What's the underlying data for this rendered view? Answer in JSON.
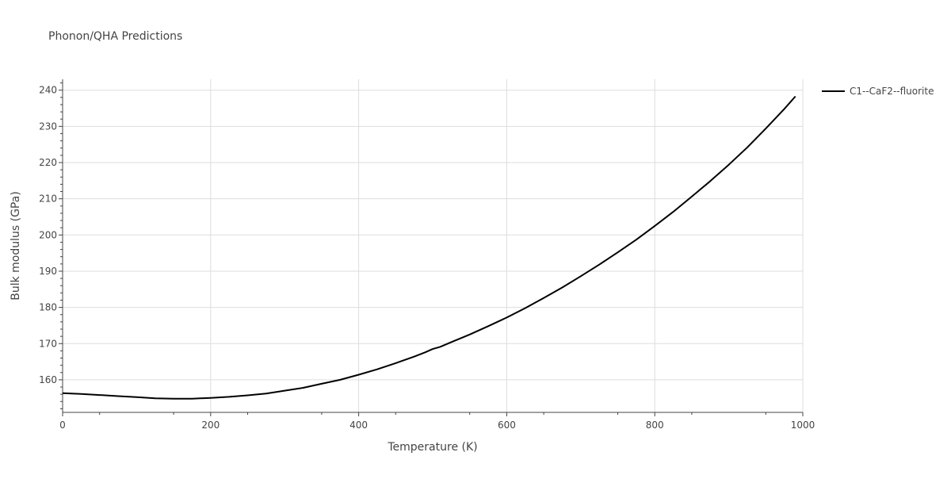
{
  "chart_data": {
    "type": "line",
    "title": "Phonon/QHA Predictions",
    "xlabel": "Temperature (K)",
    "ylabel": "Bulk modulus (GPa)",
    "xlim": [
      0,
      1000
    ],
    "ylim": [
      151,
      243
    ],
    "x_ticks": [
      0,
      200,
      400,
      600,
      800,
      1000
    ],
    "y_ticks": [
      160,
      170,
      180,
      190,
      200,
      210,
      220,
      230,
      240
    ],
    "grid": true,
    "legend_position": "top-right",
    "series": [
      {
        "name": "C1--CaF2--fluorite",
        "color": "#000000",
        "x": [
          0,
          25,
          50,
          75,
          100,
          125,
          150,
          175,
          200,
          225,
          250,
          275,
          300,
          325,
          350,
          375,
          400,
          425,
          450,
          475,
          490,
          500,
          510,
          525,
          550,
          575,
          600,
          625,
          650,
          675,
          700,
          725,
          750,
          775,
          800,
          825,
          850,
          875,
          900,
          925,
          950,
          975,
          990
        ],
        "y": [
          156.3,
          156.1,
          155.8,
          155.5,
          155.2,
          154.9,
          154.8,
          154.8,
          155.0,
          155.3,
          155.7,
          156.2,
          157.0,
          157.8,
          158.9,
          160.0,
          161.4,
          162.9,
          164.6,
          166.4,
          167.6,
          168.5,
          169.1,
          170.4,
          172.5,
          174.8,
          177.2,
          179.8,
          182.6,
          185.5,
          188.6,
          191.8,
          195.2,
          198.7,
          202.5,
          206.4,
          210.6,
          214.9,
          219.4,
          224.2,
          229.4,
          234.8,
          238.3
        ]
      }
    ]
  }
}
